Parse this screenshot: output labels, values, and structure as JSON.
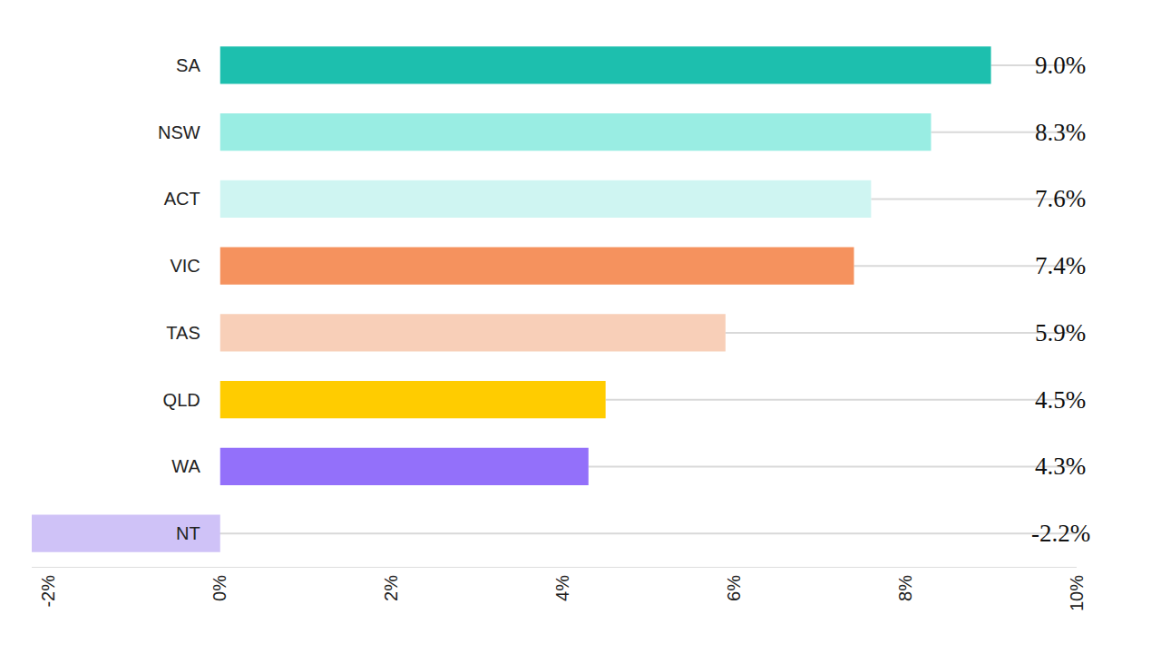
{
  "chart_data": {
    "type": "bar",
    "orientation": "horizontal",
    "categories": [
      "SA",
      "NSW",
      "ACT",
      "VIC",
      "TAS",
      "QLD",
      "WA",
      "NT"
    ],
    "values": [
      9.0,
      8.3,
      7.6,
      7.4,
      5.9,
      4.5,
      4.3,
      -2.2
    ],
    "value_labels": [
      "9.0%",
      "8.3%",
      "7.6%",
      "7.4%",
      "5.9%",
      "4.5%",
      "4.3%",
      "-2.2%"
    ],
    "colors": [
      "#1dbfae",
      "#99ede3",
      "#cff5f2",
      "#f5925e",
      "#f8cfb8",
      "#ffcc00",
      "#9370fa",
      "#cfc2f7"
    ],
    "data_labels": true,
    "grid": false,
    "xlim": [
      -2.2,
      10
    ],
    "xticks": [
      {
        "value": -2,
        "label": "-2%"
      },
      {
        "value": 0,
        "label": "0%"
      },
      {
        "value": 2,
        "label": "2%"
      },
      {
        "value": 4,
        "label": "4%"
      },
      {
        "value": 6,
        "label": "6%"
      },
      {
        "value": 8,
        "label": "8%"
      },
      {
        "value": 10,
        "label": "10%"
      }
    ]
  }
}
